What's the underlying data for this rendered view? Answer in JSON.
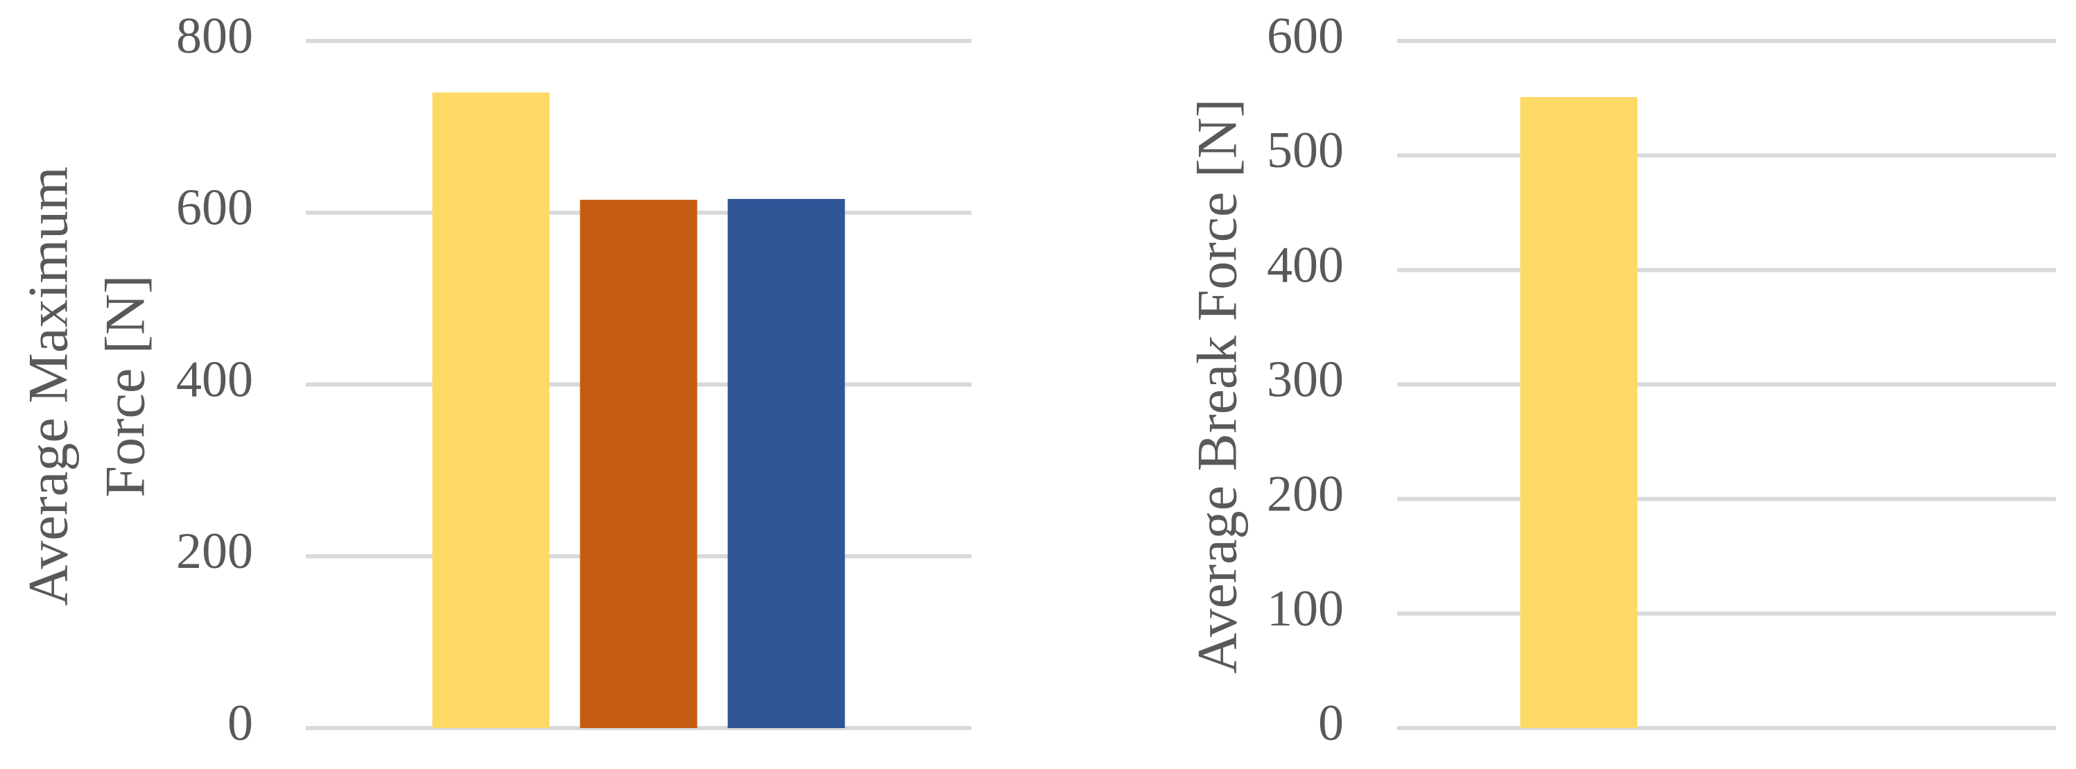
{
  "chart_data": [
    {
      "type": "bar",
      "y_label": "Average Maximum Force [N]",
      "values": [
        740,
        615,
        616
      ],
      "colors": [
        "#fed966",
        "#c55a11",
        "#2f5597"
      ],
      "ylim": [
        0,
        800
      ],
      "yticks": [
        0,
        200,
        400,
        600,
        800
      ],
      "grid": true
    },
    {
      "type": "bar",
      "y_label": "Average Break Force [N]",
      "values": [
        551,
        null,
        null
      ],
      "colors": [
        "#fed966",
        "#c55a11",
        "#2f5597"
      ],
      "ylim": [
        0,
        600
      ],
      "yticks": [
        0,
        100,
        200,
        300,
        400,
        500,
        600
      ],
      "grid": true
    }
  ]
}
